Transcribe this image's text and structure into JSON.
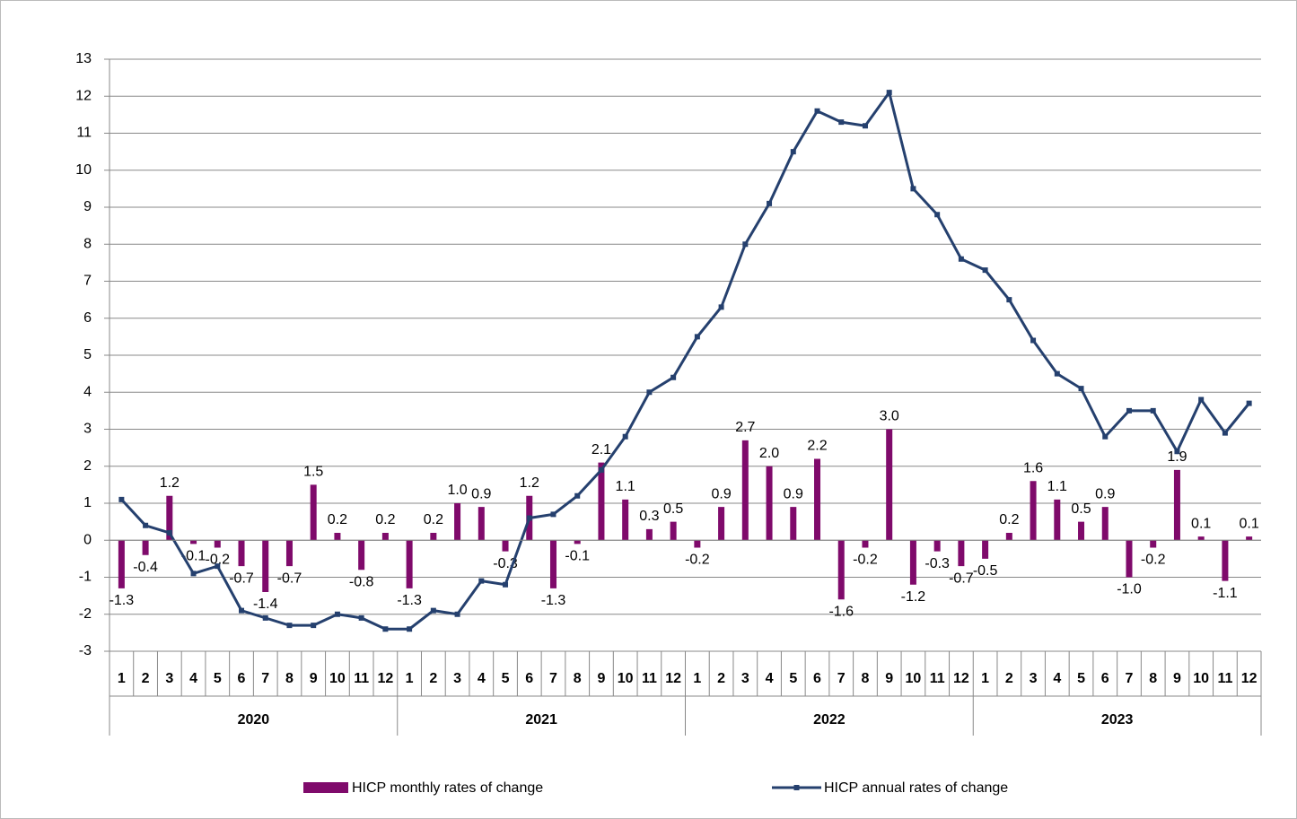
{
  "chart_data": {
    "type": "bar-line",
    "categories": [
      "1",
      "2",
      "3",
      "4",
      "5",
      "6",
      "7",
      "8",
      "9",
      "10",
      "11",
      "12",
      "1",
      "2",
      "3",
      "4",
      "5",
      "6",
      "7",
      "8",
      "9",
      "10",
      "11",
      "12",
      "1",
      "2",
      "3",
      "4",
      "5",
      "6",
      "7",
      "8",
      "9",
      "10",
      "11",
      "12",
      "1",
      "2",
      "3",
      "4",
      "5",
      "6",
      "7",
      "8",
      "9",
      "10",
      "11",
      "12"
    ],
    "category_groups": [
      "2020",
      "2021",
      "2022",
      "2023"
    ],
    "series": [
      {
        "name": "HICP monthly rates of change",
        "type": "bar",
        "color": "#7f0a6b",
        "values": [
          -1.3,
          -0.4,
          1.2,
          -0.1,
          -0.2,
          -0.7,
          -1.4,
          -0.7,
          1.5,
          0.2,
          -0.8,
          0.2,
          -1.3,
          0.2,
          1.0,
          0.9,
          -0.3,
          1.2,
          -1.3,
          -0.1,
          2.1,
          1.1,
          0.3,
          0.5,
          -0.2,
          0.9,
          2.7,
          2.0,
          0.9,
          2.2,
          -1.6,
          -0.2,
          3.0,
          -1.2,
          -0.3,
          -0.7,
          -0.5,
          0.2,
          1.6,
          1.1,
          0.5,
          0.9,
          -1.0,
          -0.2,
          1.9,
          0.1,
          -1.1,
          0.1
        ],
        "value_labels": [
          "-1.3",
          "-0.4",
          "1.2",
          "-0.1",
          "-0.2",
          "-0.7",
          "-1.4",
          "-0.7",
          "1.5",
          "0.2",
          "-0.8",
          "0.2",
          "-1.3",
          "0.2",
          "1.0",
          "0.9",
          "-0.3",
          "1.2",
          "-1.3",
          "-0.1",
          "2.1",
          "1.1",
          "0.3",
          "0.5",
          "-0.2",
          "0.9",
          "2.7",
          "2.0",
          "0.9",
          "2.2",
          "-1.6",
          "-0.2",
          "3.0",
          "-1.2",
          "-0.3",
          "-0.7",
          "-0.5",
          "0.2",
          "1.6",
          "1.1",
          "0.5",
          "0.9",
          "-1.0",
          "-0.2",
          "1.9",
          "0.1",
          "-1.1",
          "0.1"
        ]
      },
      {
        "name": "HICP annual rates of change",
        "type": "line",
        "color": "#25406e",
        "values": [
          1.1,
          0.4,
          0.2,
          -0.9,
          -0.7,
          -1.9,
          -2.1,
          -2.3,
          -2.3,
          -2.0,
          -2.1,
          -2.4,
          -2.4,
          -1.9,
          -2.0,
          -1.1,
          -1.2,
          0.6,
          0.7,
          1.2,
          1.9,
          2.8,
          4.0,
          4.4,
          5.5,
          6.3,
          8.0,
          9.1,
          10.5,
          11.6,
          11.3,
          11.2,
          12.1,
          9.5,
          8.8,
          7.6,
          7.3,
          6.5,
          5.4,
          4.5,
          4.1,
          2.8,
          3.5,
          3.5,
          2.4,
          3.8,
          2.9,
          3.7
        ]
      }
    ],
    "ylim": [
      -3,
      13
    ],
    "yticks": [
      -3,
      -2,
      -1,
      0,
      1,
      2,
      3,
      4,
      5,
      6,
      7,
      8,
      9,
      10,
      11,
      12,
      13
    ],
    "grid": true,
    "legend": "bottom"
  }
}
